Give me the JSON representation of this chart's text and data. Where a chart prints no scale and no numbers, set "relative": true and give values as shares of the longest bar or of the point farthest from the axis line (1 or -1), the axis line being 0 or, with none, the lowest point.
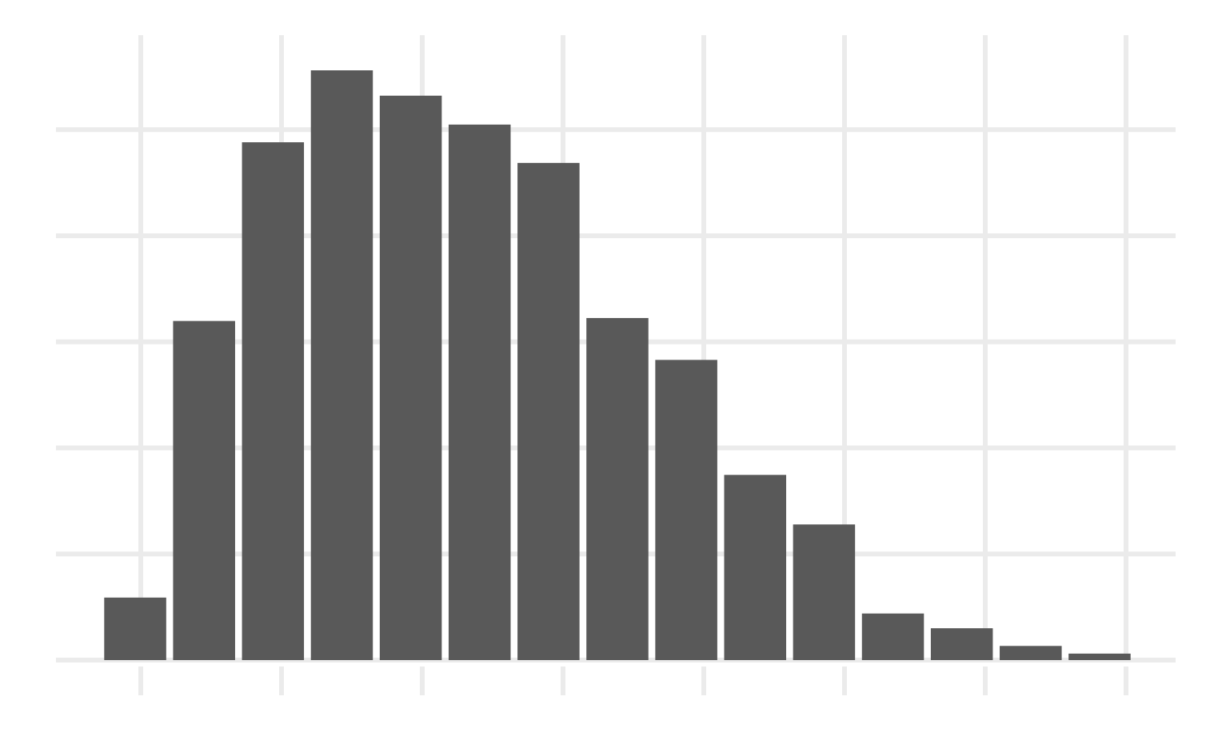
{
  "chart_data": {
    "type": "bar",
    "relative": true,
    "grid": true,
    "color": "#595959",
    "categories": [
      null,
      null,
      null,
      null,
      null,
      null,
      null,
      null,
      null,
      null,
      null,
      null,
      null,
      null,
      null
    ],
    "values": [
      0.106,
      0.575,
      0.878,
      1,
      0.957,
      0.908,
      0.843,
      0.58,
      0.509,
      0.314,
      0.23,
      0.079,
      0.054,
      0.024,
      0.011
    ]
  }
}
